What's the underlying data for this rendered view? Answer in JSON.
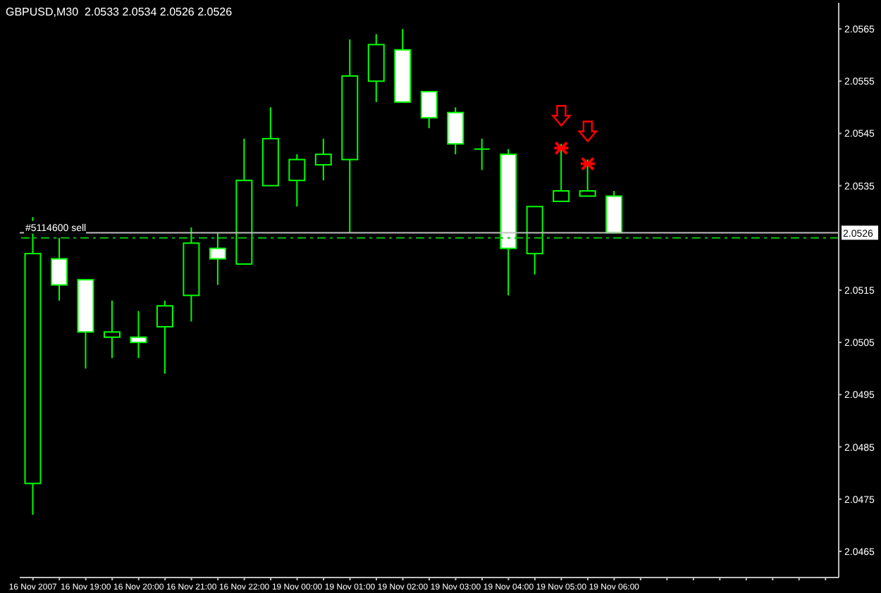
{
  "chart_data": {
    "type": "candlestick",
    "title": "GBPUSD,M30  2.0533 2.0534 2.0526 2.0526",
    "categories": [
      "16 Nov 2007",
      null,
      "16 Nov 19:00",
      null,
      "16 Nov 20:00",
      null,
      "16 Nov 21:00",
      null,
      "16 Nov 22:00",
      null,
      "19 Nov 00:00",
      null,
      "19 Nov 01:00",
      null,
      "19 Nov 02:00",
      null,
      "19 Nov 03:00",
      null,
      "19 Nov 04:00",
      null,
      "19 Nov 05:00",
      null,
      "19 Nov 06:00",
      null,
      null,
      null,
      null,
      null,
      null,
      null,
      null
    ],
    "ohlc": [
      [
        2.0478,
        2.0529,
        2.0472,
        2.0522
      ],
      [
        2.0521,
        2.0525,
        2.0513,
        2.0516
      ],
      [
        2.0517,
        2.0517,
        2.05,
        2.0507
      ],
      [
        2.0506,
        2.0513,
        2.0502,
        2.0507
      ],
      [
        2.0506,
        2.0511,
        2.0502,
        2.0505
      ],
      [
        2.0508,
        2.0513,
        2.0499,
        2.0512
      ],
      [
        2.0514,
        2.0527,
        2.0509,
        2.0524
      ],
      [
        2.0523,
        2.0526,
        2.0516,
        2.0521
      ],
      [
        2.052,
        2.0544,
        2.052,
        2.0536
      ],
      [
        2.0535,
        2.055,
        2.0535,
        2.0544
      ],
      [
        2.0536,
        2.0541,
        2.0531,
        2.054
      ],
      [
        2.0539,
        2.0544,
        2.0536,
        2.0541
      ],
      [
        2.054,
        2.0563,
        2.0526,
        2.0556
      ],
      [
        2.0555,
        2.0564,
        2.0551,
        2.0562
      ],
      [
        2.0561,
        2.0565,
        2.0551,
        2.0551
      ],
      [
        2.0553,
        2.0553,
        2.0546,
        2.0548
      ],
      [
        2.0549,
        2.055,
        2.0541,
        2.0543
      ],
      [
        2.0542,
        2.0544,
        2.0538,
        2.0542
      ],
      [
        2.0541,
        2.0542,
        2.0514,
        2.0523
      ],
      [
        2.0522,
        2.0531,
        2.0518,
        2.0531
      ],
      [
        2.0532,
        2.0543,
        2.0532,
        2.0534
      ],
      [
        2.0533,
        2.054,
        2.0533,
        2.0534
      ],
      [
        2.0533,
        2.0534,
        2.0526,
        2.0526
      ],
      null,
      null,
      null,
      null,
      null,
      null,
      null,
      null
    ],
    "color": "#00ff00",
    "ylim": [
      2.046,
      2.057
    ],
    "yticks": [
      2.0465,
      2.0475,
      2.0485,
      2.0495,
      2.0505,
      2.0515,
      2.0535,
      2.0545,
      2.0555,
      2.0565
    ],
    "ref_lines": [
      {
        "axis": "y",
        "value": 2.0526,
        "label": "2.0526",
        "color": "#c0c0c0",
        "line_style": "solid"
      },
      {
        "axis": "y",
        "value": 2.0525,
        "label": "#5114600 sell",
        "color": "#00c000",
        "line_style": "dashed"
      }
    ],
    "grid": false,
    "legend": false
  }
}
